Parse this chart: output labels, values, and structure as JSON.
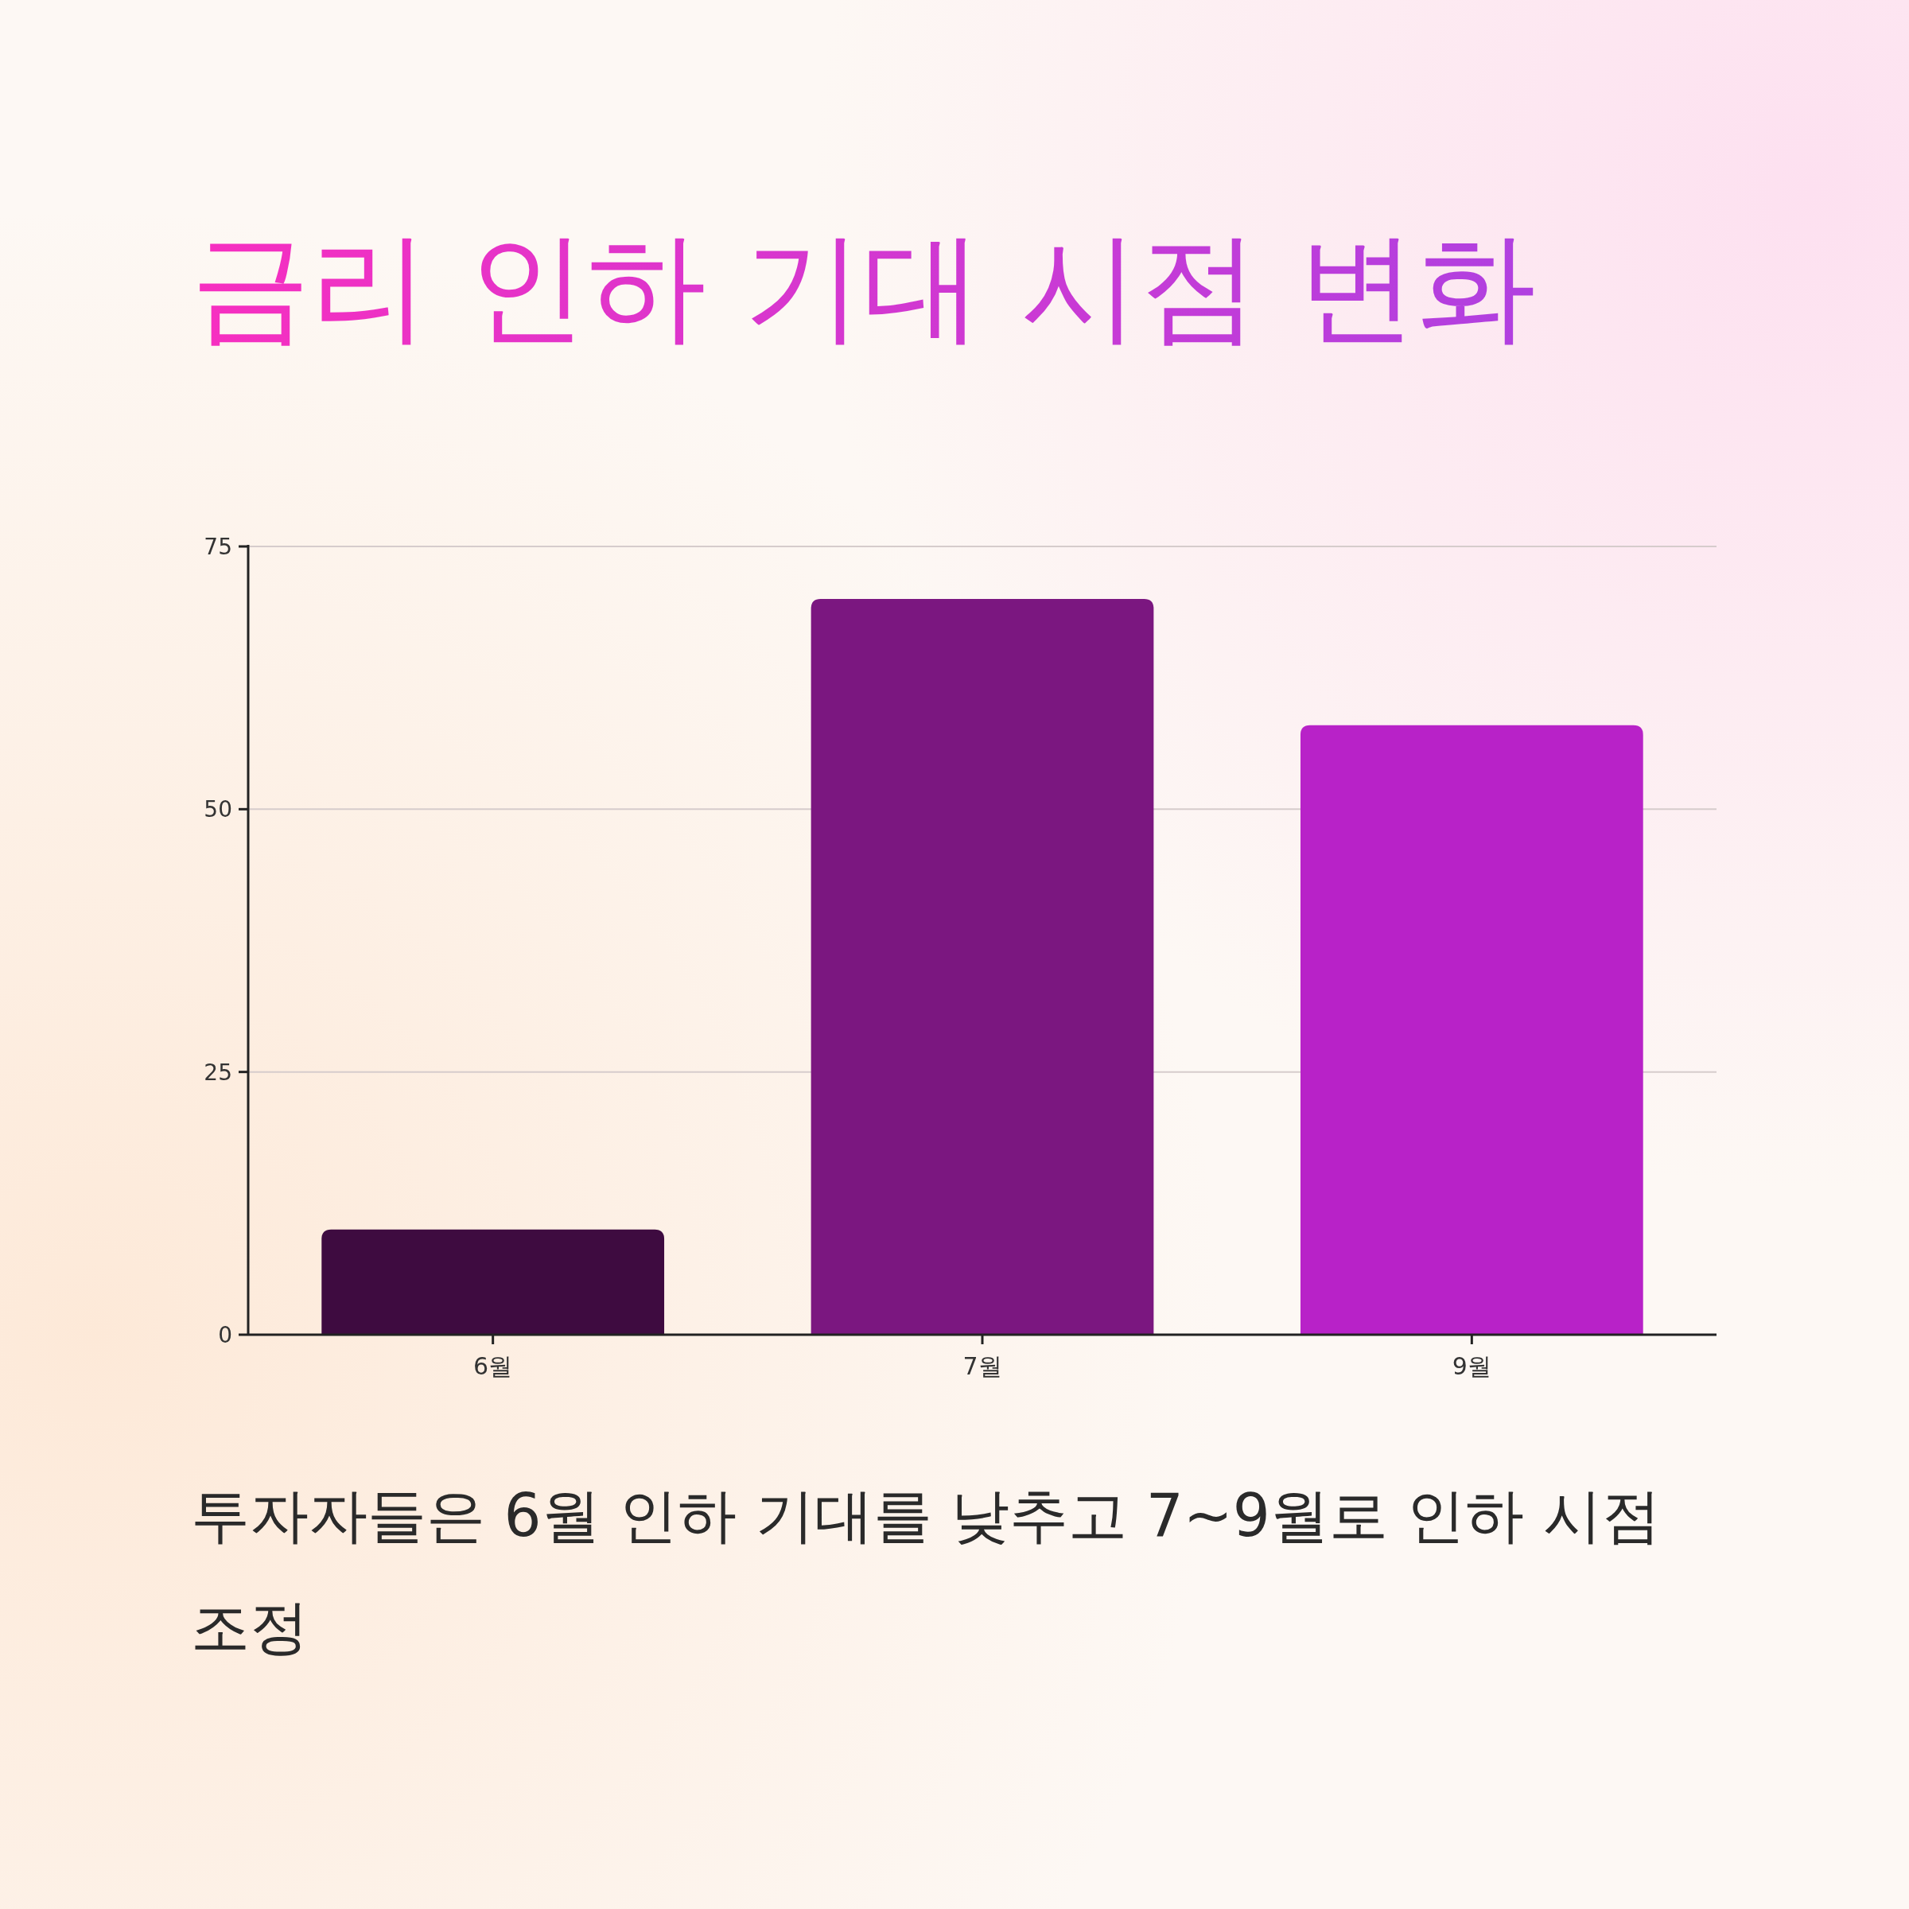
{
  "chart_data": {
    "type": "bar",
    "title": "금리 인하 기대 시점 변화",
    "categories": [
      "6월",
      "7월",
      "9월"
    ],
    "values": [
      10,
      70,
      58
    ],
    "colors": [
      "#3e0b40",
      "#7b1780",
      "#b822c8"
    ],
    "ylim": [
      0,
      75
    ],
    "yticks": [
      0,
      25,
      50,
      75
    ],
    "grid": "y",
    "annotations": [
      "투자자들은 6월 인하 기대를 낮추고 7~9월로 인하 시점 조정"
    ]
  }
}
